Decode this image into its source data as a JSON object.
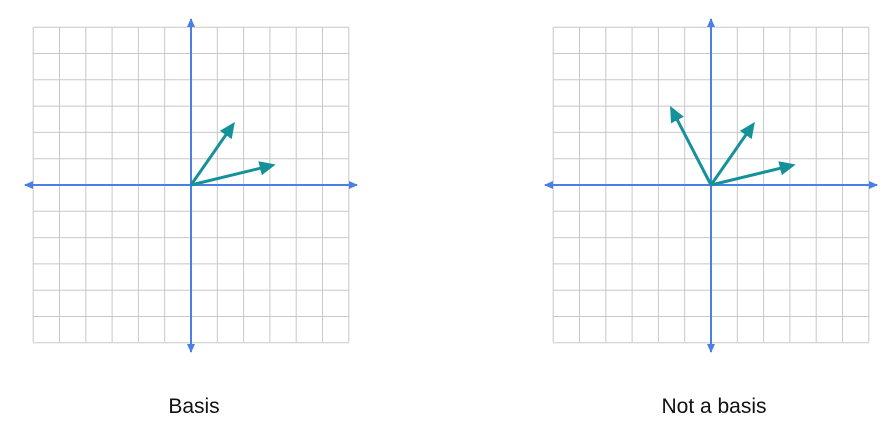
{
  "colors": {
    "grid": "#c8c8c8",
    "axis": "#4a7fe6",
    "vector": "#15919a"
  },
  "grid": {
    "x_range": [
      -6,
      6
    ],
    "y_range": [
      -6,
      6
    ],
    "step": 1
  },
  "panels": [
    {
      "caption": "Basis",
      "vectors": [
        {
          "x": 1.6,
          "y": 2.3
        },
        {
          "x": 3.1,
          "y": 0.75
        }
      ]
    },
    {
      "caption": "Not a basis",
      "vectors": [
        {
          "x": -1.5,
          "y": 2.9
        },
        {
          "x": 1.6,
          "y": 2.3
        },
        {
          "x": 3.1,
          "y": 0.75
        }
      ]
    }
  ]
}
